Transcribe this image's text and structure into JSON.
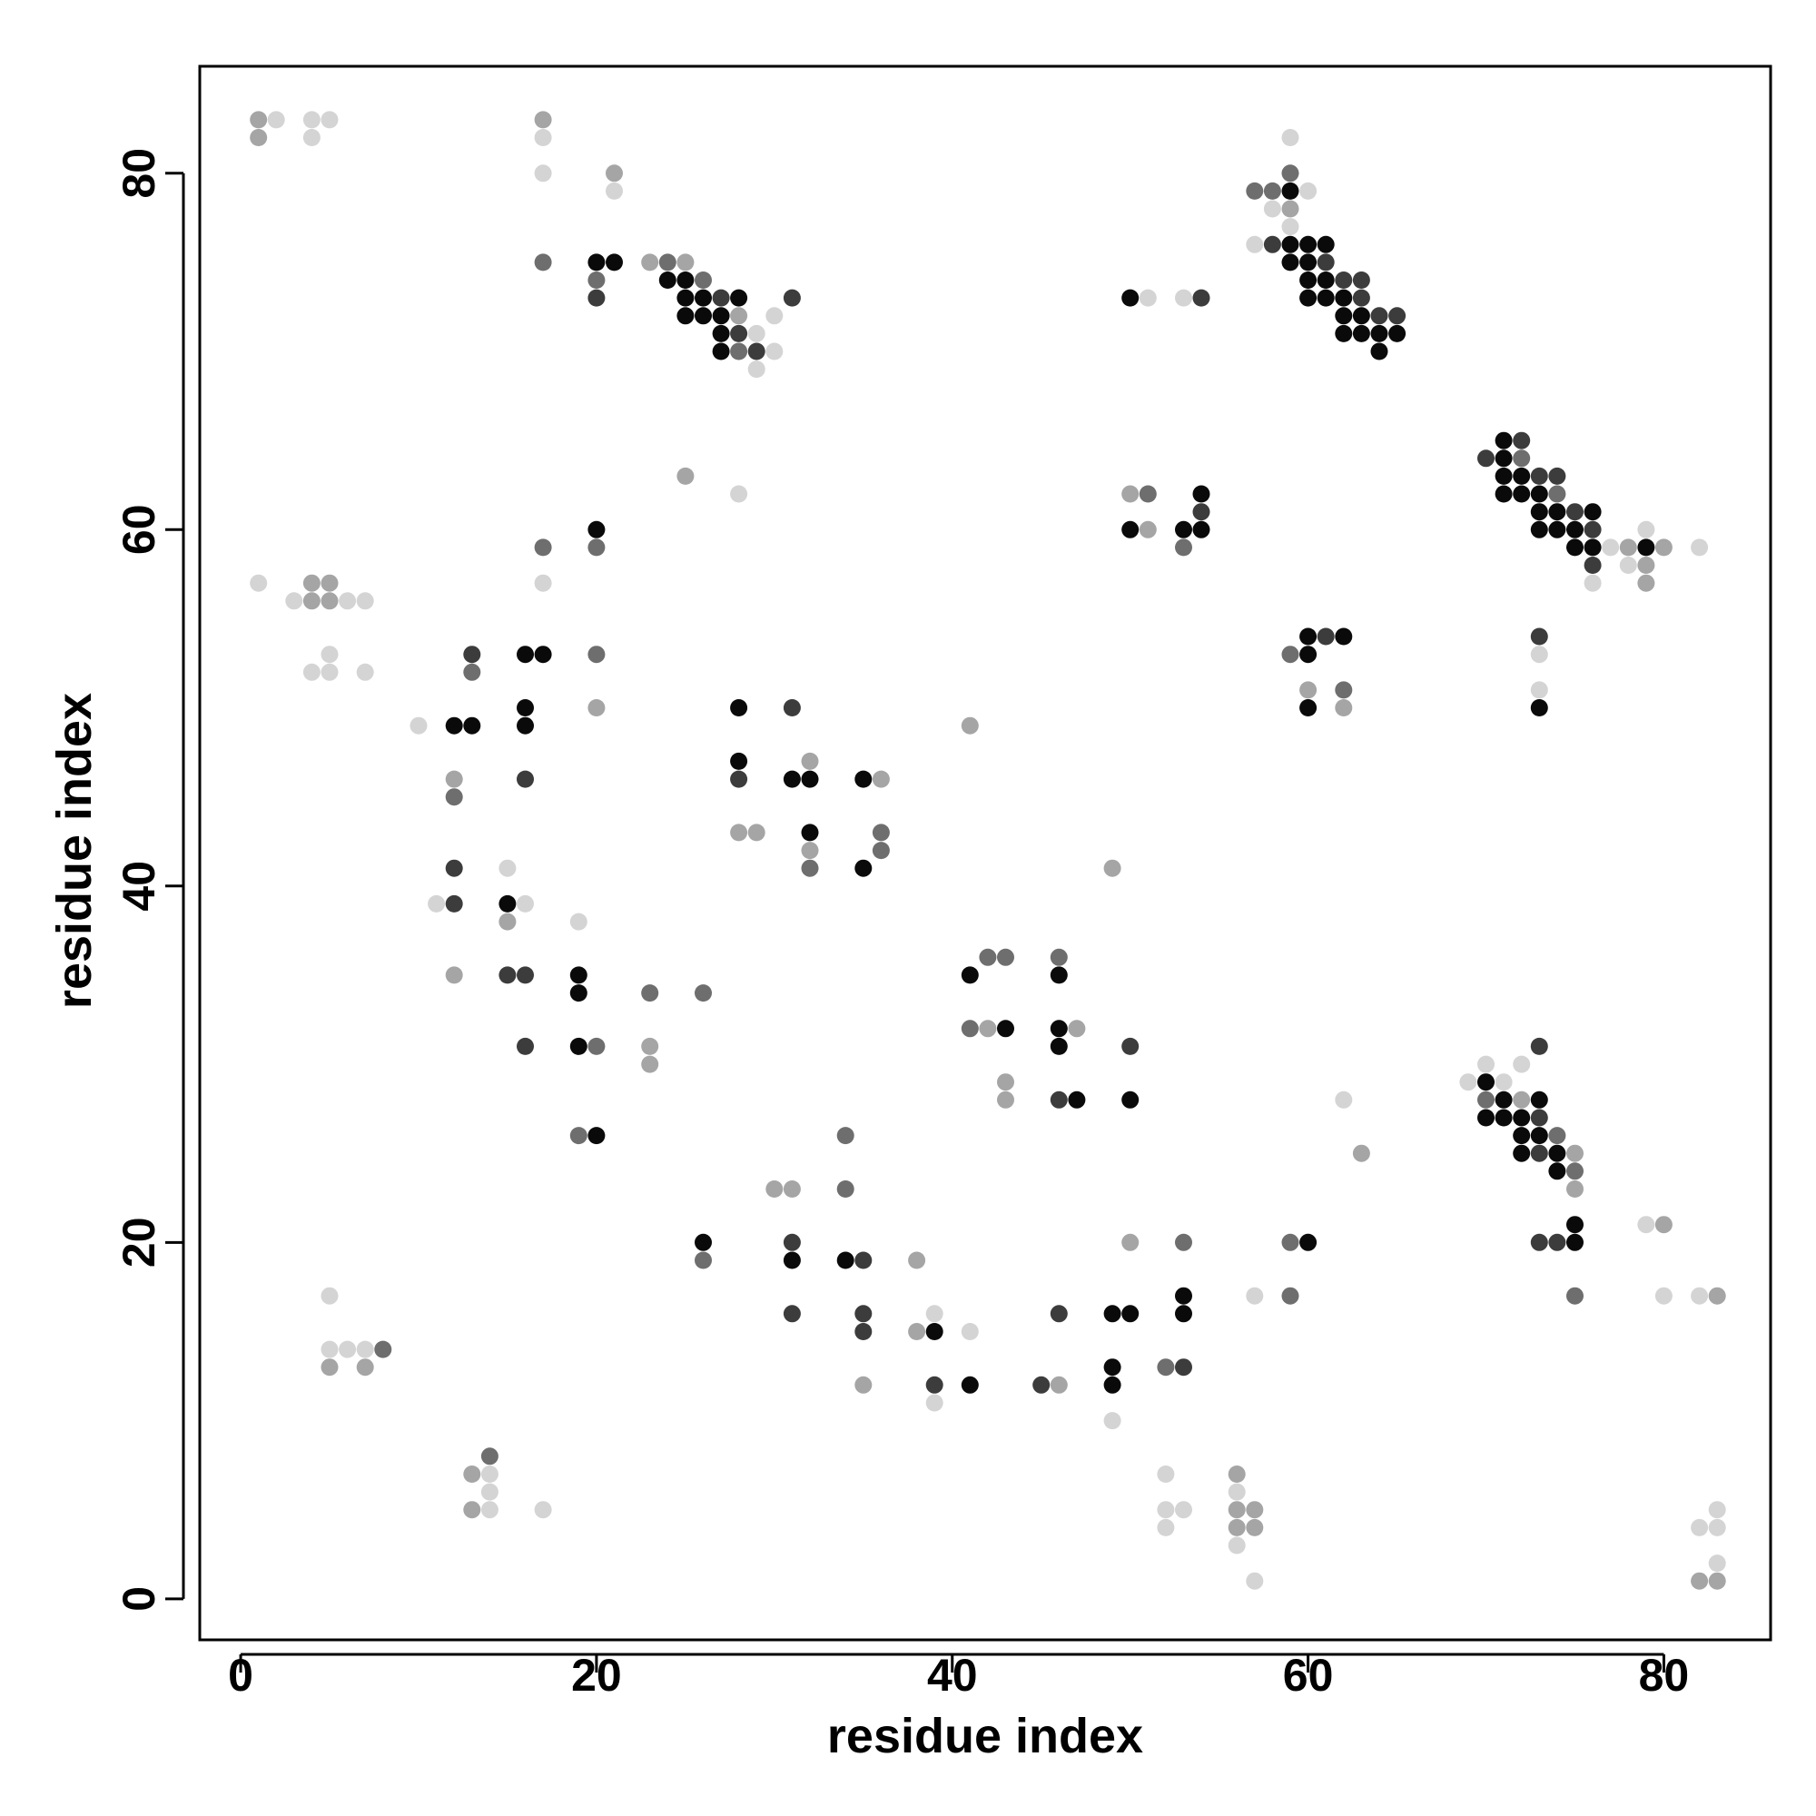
{
  "chart_data": {
    "type": "scatter",
    "title": "",
    "xlabel": "residue index",
    "ylabel": "residue index",
    "xlim": [
      -2.3,
      86
    ],
    "ylim": [
      -2.3,
      86
    ],
    "xticks": [
      0,
      20,
      40,
      60,
      80
    ],
    "yticks": [
      0,
      20,
      40,
      60,
      80
    ],
    "grid": false,
    "legend": "none",
    "marker_colors": {
      "1": "#0a0a0a",
      "2": "#3c3c3c",
      "3": "#6e6e6e",
      "4": "#a5a5a5",
      "5": "#d4d4d4"
    },
    "marker_color_note": "each point is [x, y, shade]; shade 1 = darkest, 5 = lightest",
    "points": [
      [
        1,
        83,
        4
      ],
      [
        2,
        83,
        5
      ],
      [
        4,
        83,
        5
      ],
      [
        5,
        83,
        5
      ],
      [
        1,
        82,
        4
      ],
      [
        4,
        82,
        5
      ],
      [
        17,
        83,
        4
      ],
      [
        17,
        82,
        5
      ],
      [
        17,
        80,
        5
      ],
      [
        21,
        80,
        4
      ],
      [
        21,
        79,
        5
      ],
      [
        17,
        75,
        3
      ],
      [
        20,
        75,
        1
      ],
      [
        21,
        75,
        1
      ],
      [
        23,
        75,
        4
      ],
      [
        24,
        75,
        3
      ],
      [
        25,
        75,
        4
      ],
      [
        20,
        74,
        3
      ],
      [
        24,
        74,
        1
      ],
      [
        25,
        74,
        1
      ],
      [
        26,
        74,
        3
      ],
      [
        20,
        73,
        2
      ],
      [
        25,
        73,
        1
      ],
      [
        26,
        73,
        1
      ],
      [
        27,
        73,
        2
      ],
      [
        28,
        73,
        1
      ],
      [
        31,
        73,
        2
      ],
      [
        25,
        72,
        1
      ],
      [
        26,
        72,
        1
      ],
      [
        27,
        72,
        1
      ],
      [
        28,
        72,
        4
      ],
      [
        30,
        72,
        5
      ],
      [
        27,
        71,
        1
      ],
      [
        28,
        71,
        2
      ],
      [
        29,
        71,
        5
      ],
      [
        27,
        70,
        1
      ],
      [
        28,
        70,
        3
      ],
      [
        29,
        70,
        2
      ],
      [
        30,
        70,
        5
      ],
      [
        29,
        69,
        5
      ],
      [
        25,
        63,
        4
      ],
      [
        28,
        62,
        5
      ],
      [
        50,
        73,
        1
      ],
      [
        51,
        73,
        5
      ],
      [
        53,
        73,
        5
      ],
      [
        54,
        73,
        2
      ],
      [
        59,
        82,
        5
      ],
      [
        59,
        80,
        3
      ],
      [
        57,
        79,
        3
      ],
      [
        58,
        79,
        3
      ],
      [
        59,
        79,
        1
      ],
      [
        60,
        79,
        5
      ],
      [
        58,
        78,
        5
      ],
      [
        59,
        78,
        4
      ],
      [
        59,
        77,
        5
      ],
      [
        57,
        76,
        5
      ],
      [
        58,
        76,
        2
      ],
      [
        59,
        76,
        1
      ],
      [
        60,
        76,
        1
      ],
      [
        61,
        76,
        1
      ],
      [
        59,
        75,
        1
      ],
      [
        60,
        75,
        1
      ],
      [
        61,
        75,
        2
      ],
      [
        60,
        74,
        1
      ],
      [
        61,
        74,
        1
      ],
      [
        62,
        74,
        2
      ],
      [
        63,
        74,
        2
      ],
      [
        60,
        73,
        1
      ],
      [
        61,
        73,
        1
      ],
      [
        62,
        73,
        1
      ],
      [
        63,
        73,
        2
      ],
      [
        62,
        72,
        1
      ],
      [
        63,
        72,
        1
      ],
      [
        64,
        72,
        2
      ],
      [
        65,
        72,
        2
      ],
      [
        62,
        71,
        1
      ],
      [
        63,
        71,
        1
      ],
      [
        64,
        71,
        1
      ],
      [
        65,
        71,
        1
      ],
      [
        64,
        70,
        1
      ],
      [
        70,
        64,
        2
      ],
      [
        71,
        65,
        1
      ],
      [
        72,
        65,
        2
      ],
      [
        71,
        64,
        1
      ],
      [
        72,
        64,
        3
      ],
      [
        71,
        63,
        1
      ],
      [
        72,
        63,
        1
      ],
      [
        73,
        63,
        2
      ],
      [
        74,
        63,
        2
      ],
      [
        71,
        62,
        1
      ],
      [
        72,
        62,
        1
      ],
      [
        73,
        62,
        1
      ],
      [
        74,
        62,
        3
      ],
      [
        73,
        61,
        1
      ],
      [
        74,
        61,
        1
      ],
      [
        75,
        61,
        2
      ],
      [
        76,
        61,
        1
      ],
      [
        73,
        60,
        1
      ],
      [
        74,
        60,
        1
      ],
      [
        75,
        60,
        1
      ],
      [
        76,
        60,
        2
      ],
      [
        79,
        60,
        5
      ],
      [
        75,
        59,
        1
      ],
      [
        76,
        59,
        1
      ],
      [
        77,
        59,
        5
      ],
      [
        78,
        59,
        4
      ],
      [
        79,
        59,
        1
      ],
      [
        80,
        59,
        4
      ],
      [
        82,
        59,
        5
      ],
      [
        76,
        58,
        2
      ],
      [
        78,
        58,
        5
      ],
      [
        79,
        58,
        4
      ],
      [
        76,
        57,
        5
      ],
      [
        79,
        57,
        4
      ],
      [
        50,
        62,
        4
      ],
      [
        51,
        62,
        3
      ],
      [
        54,
        62,
        1
      ],
      [
        54,
        61,
        2
      ],
      [
        50,
        60,
        1
      ],
      [
        51,
        60,
        4
      ],
      [
        53,
        60,
        1
      ],
      [
        54,
        60,
        1
      ],
      [
        53,
        59,
        3
      ],
      [
        60,
        54,
        1
      ],
      [
        61,
        54,
        2
      ],
      [
        62,
        54,
        1
      ],
      [
        59,
        53,
        3
      ],
      [
        60,
        53,
        1
      ],
      [
        60,
        51,
        4
      ],
      [
        62,
        51,
        3
      ],
      [
        60,
        50,
        1
      ],
      [
        62,
        50,
        4
      ],
      [
        73,
        54,
        2
      ],
      [
        73,
        53,
        5
      ],
      [
        73,
        51,
        5
      ],
      [
        73,
        50,
        1
      ],
      [
        1,
        57,
        5
      ],
      [
        3,
        56,
        5
      ],
      [
        4,
        57,
        4
      ],
      [
        5,
        57,
        4
      ],
      [
        4,
        56,
        4
      ],
      [
        5,
        56,
        4
      ],
      [
        6,
        56,
        5
      ],
      [
        7,
        56,
        5
      ],
      [
        5,
        53,
        5
      ],
      [
        4,
        52,
        5
      ],
      [
        5,
        52,
        5
      ],
      [
        7,
        52,
        5
      ],
      [
        17,
        59,
        3
      ],
      [
        17,
        57,
        5
      ],
      [
        20,
        60,
        1
      ],
      [
        20,
        59,
        3
      ],
      [
        20,
        53,
        3
      ],
      [
        20,
        50,
        4
      ],
      [
        13,
        53,
        2
      ],
      [
        13,
        52,
        3
      ],
      [
        16,
        53,
        1
      ],
      [
        17,
        53,
        1
      ],
      [
        16,
        50,
        1
      ],
      [
        16,
        49,
        1
      ],
      [
        10,
        49,
        5
      ],
      [
        12,
        49,
        1
      ],
      [
        13,
        49,
        1
      ],
      [
        12,
        46,
        4
      ],
      [
        16,
        46,
        2
      ],
      [
        12,
        45,
        3
      ],
      [
        28,
        50,
        1
      ],
      [
        31,
        50,
        2
      ],
      [
        28,
        47,
        1
      ],
      [
        32,
        47,
        4
      ],
      [
        28,
        46,
        2
      ],
      [
        31,
        46,
        1
      ],
      [
        32,
        46,
        1
      ],
      [
        35,
        46,
        1
      ],
      [
        36,
        46,
        4
      ],
      [
        28,
        43,
        4
      ],
      [
        29,
        43,
        4
      ],
      [
        32,
        43,
        1
      ],
      [
        36,
        43,
        3
      ],
      [
        32,
        42,
        4
      ],
      [
        36,
        42,
        3
      ],
      [
        32,
        41,
        3
      ],
      [
        35,
        41,
        1
      ],
      [
        41,
        49,
        4
      ],
      [
        49,
        41,
        4
      ],
      [
        12,
        41,
        2
      ],
      [
        15,
        41,
        5
      ],
      [
        11,
        39,
        5
      ],
      [
        12,
        39,
        2
      ],
      [
        15,
        39,
        1
      ],
      [
        16,
        39,
        5
      ],
      [
        15,
        38,
        4
      ],
      [
        19,
        38,
        5
      ],
      [
        12,
        35,
        4
      ],
      [
        15,
        35,
        2
      ],
      [
        16,
        35,
        2
      ],
      [
        19,
        35,
        1
      ],
      [
        19,
        34,
        1
      ],
      [
        23,
        34,
        3
      ],
      [
        26,
        34,
        3
      ],
      [
        16,
        31,
        2
      ],
      [
        19,
        31,
        1
      ],
      [
        20,
        31,
        3
      ],
      [
        23,
        31,
        4
      ],
      [
        23,
        30,
        4
      ],
      [
        19,
        26,
        3
      ],
      [
        20,
        26,
        1
      ],
      [
        42,
        36,
        3
      ],
      [
        43,
        36,
        3
      ],
      [
        46,
        36,
        3
      ],
      [
        41,
        35,
        1
      ],
      [
        46,
        35,
        1
      ],
      [
        41,
        32,
        3
      ],
      [
        42,
        32,
        4
      ],
      [
        43,
        32,
        1
      ],
      [
        46,
        32,
        1
      ],
      [
        47,
        32,
        4
      ],
      [
        46,
        31,
        1
      ],
      [
        50,
        31,
        2
      ],
      [
        43,
        29,
        4
      ],
      [
        43,
        28,
        4
      ],
      [
        46,
        28,
        2
      ],
      [
        47,
        28,
        1
      ],
      [
        50,
        28,
        1
      ],
      [
        62,
        28,
        5
      ],
      [
        63,
        25,
        4
      ],
      [
        69,
        29,
        5
      ],
      [
        70,
        30,
        5
      ],
      [
        70,
        29,
        1
      ],
      [
        71,
        29,
        5
      ],
      [
        72,
        30,
        5
      ],
      [
        73,
        31,
        2
      ],
      [
        70,
        28,
        3
      ],
      [
        71,
        28,
        1
      ],
      [
        72,
        28,
        4
      ],
      [
        73,
        28,
        1
      ],
      [
        70,
        27,
        1
      ],
      [
        71,
        27,
        1
      ],
      [
        72,
        27,
        1
      ],
      [
        73,
        27,
        2
      ],
      [
        72,
        26,
        1
      ],
      [
        73,
        26,
        1
      ],
      [
        74,
        26,
        3
      ],
      [
        72,
        25,
        1
      ],
      [
        73,
        25,
        2
      ],
      [
        74,
        25,
        1
      ],
      [
        75,
        25,
        4
      ],
      [
        74,
        24,
        1
      ],
      [
        75,
        24,
        3
      ],
      [
        75,
        23,
        4
      ],
      [
        73,
        20,
        2
      ],
      [
        74,
        20,
        2
      ],
      [
        75,
        20,
        1
      ],
      [
        75,
        21,
        1
      ],
      [
        75,
        17,
        3
      ],
      [
        79,
        21,
        5
      ],
      [
        80,
        21,
        4
      ],
      [
        80,
        17,
        5
      ],
      [
        82,
        17,
        5
      ],
      [
        83,
        17,
        4
      ],
      [
        30,
        23,
        4
      ],
      [
        31,
        23,
        4
      ],
      [
        34,
        26,
        3
      ],
      [
        34,
        23,
        3
      ],
      [
        26,
        20,
        1
      ],
      [
        26,
        19,
        3
      ],
      [
        31,
        20,
        2
      ],
      [
        31,
        19,
        1
      ],
      [
        34,
        19,
        1
      ],
      [
        35,
        19,
        2
      ],
      [
        38,
        19,
        4
      ],
      [
        31,
        16,
        2
      ],
      [
        35,
        16,
        2
      ],
      [
        35,
        15,
        2
      ],
      [
        38,
        15,
        4
      ],
      [
        39,
        15,
        1
      ],
      [
        39,
        16,
        5
      ],
      [
        41,
        15,
        5
      ],
      [
        35,
        12,
        4
      ],
      [
        39,
        12,
        2
      ],
      [
        41,
        12,
        1
      ],
      [
        45,
        12,
        2
      ],
      [
        46,
        12,
        4
      ],
      [
        39,
        11,
        5
      ],
      [
        46,
        16,
        2
      ],
      [
        49,
        16,
        1
      ],
      [
        50,
        16,
        1
      ],
      [
        53,
        16,
        1
      ],
      [
        53,
        17,
        1
      ],
      [
        50,
        20,
        4
      ],
      [
        53,
        20,
        3
      ],
      [
        49,
        13,
        1
      ],
      [
        52,
        13,
        3
      ],
      [
        53,
        13,
        2
      ],
      [
        49,
        12,
        1
      ],
      [
        49,
        10,
        5
      ],
      [
        57,
        17,
        5
      ],
      [
        59,
        17,
        3
      ],
      [
        59,
        20,
        3
      ],
      [
        60,
        20,
        1
      ],
      [
        5,
        17,
        5
      ],
      [
        5,
        14,
        5
      ],
      [
        6,
        14,
        5
      ],
      [
        7,
        14,
        5
      ],
      [
        8,
        14,
        3
      ],
      [
        5,
        13,
        4
      ],
      [
        7,
        13,
        4
      ],
      [
        14,
        8,
        3
      ],
      [
        13,
        7,
        4
      ],
      [
        14,
        7,
        5
      ],
      [
        14,
        6,
        5
      ],
      [
        13,
        5,
        4
      ],
      [
        14,
        5,
        5
      ],
      [
        17,
        5,
        5
      ],
      [
        52,
        7,
        5
      ],
      [
        52,
        5,
        5
      ],
      [
        53,
        5,
        5
      ],
      [
        52,
        4,
        5
      ],
      [
        56,
        7,
        4
      ],
      [
        56,
        6,
        5
      ],
      [
        56,
        5,
        4
      ],
      [
        57,
        5,
        4
      ],
      [
        56,
        4,
        4
      ],
      [
        57,
        4,
        4
      ],
      [
        56,
        3,
        5
      ],
      [
        57,
        1,
        5
      ],
      [
        82,
        4,
        5
      ],
      [
        83,
        4,
        5
      ],
      [
        83,
        5,
        5
      ],
      [
        83,
        2,
        5
      ],
      [
        82,
        1,
        4
      ],
      [
        83,
        1,
        4
      ]
    ]
  }
}
